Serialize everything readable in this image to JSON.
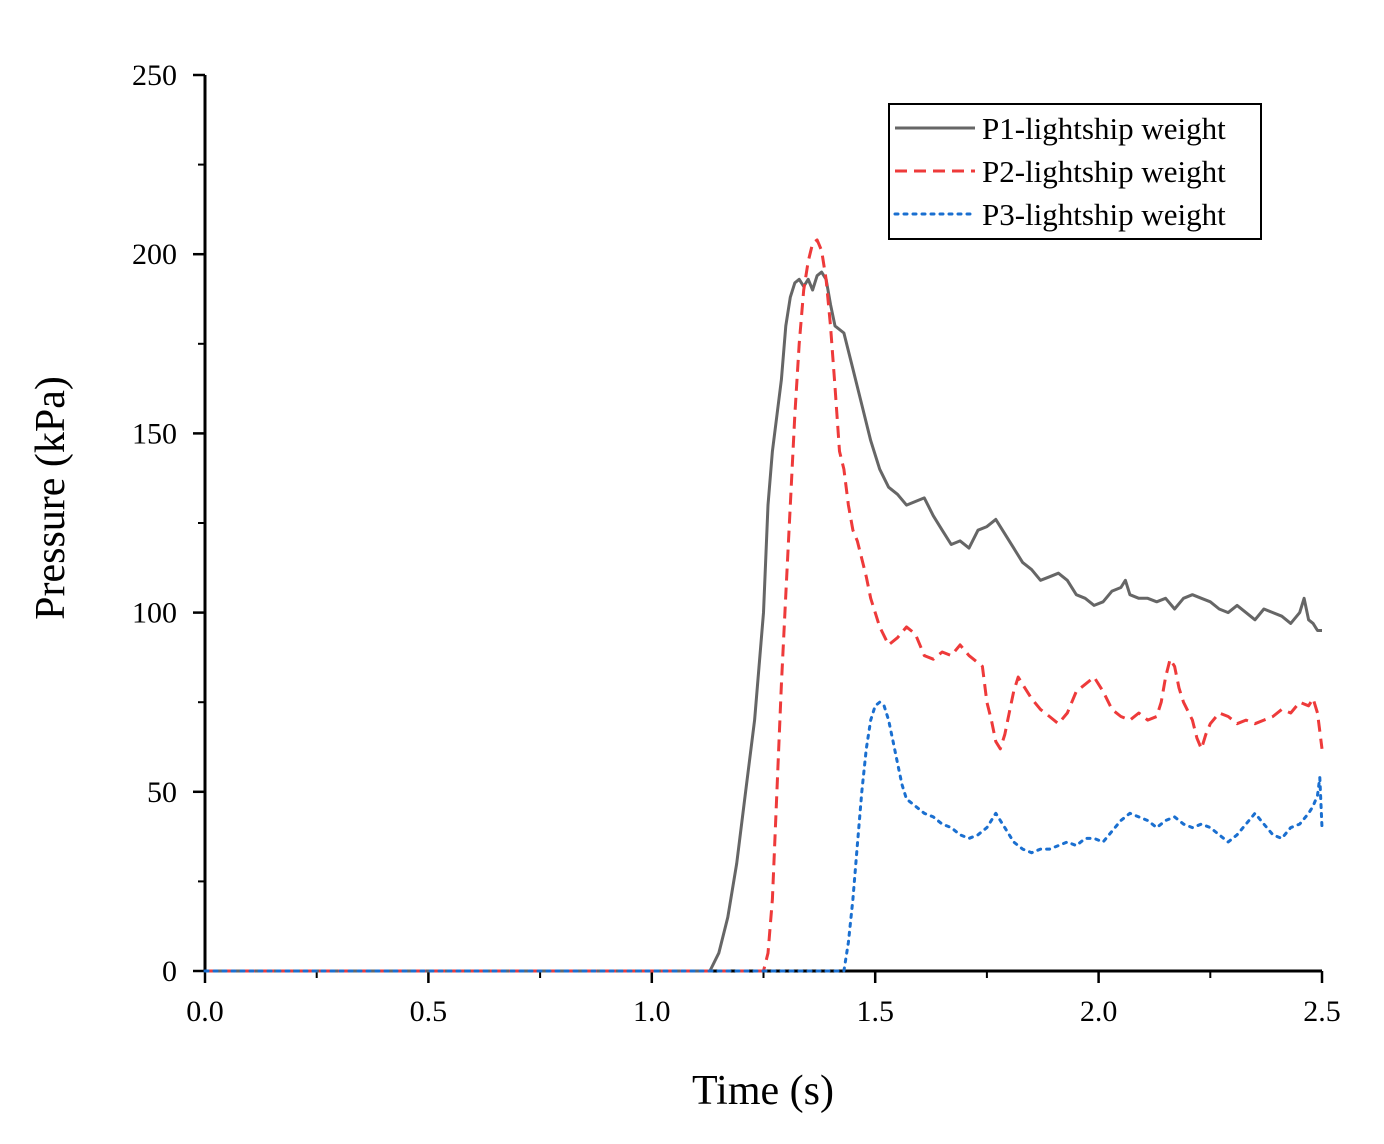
{
  "chart_data": {
    "type": "line",
    "title": "",
    "xlabel": "Time (s)",
    "ylabel": "Pressure (kPa)",
    "xlim": [
      0,
      2.5
    ],
    "ylim": [
      0,
      250
    ],
    "xticks": [
      "0.0",
      "0.5",
      "1.0",
      "1.5",
      "2.0",
      "2.5"
    ],
    "yticks": [
      "0",
      "50",
      "100",
      "150",
      "200",
      "250"
    ],
    "grid": false,
    "legend_position": "top-right",
    "series": [
      {
        "name": "P1-lightship weight",
        "color": "#666666",
        "style": "solid",
        "points": [
          [
            0,
            0
          ],
          [
            1.13,
            0
          ],
          [
            1.15,
            5
          ],
          [
            1.17,
            15
          ],
          [
            1.19,
            30
          ],
          [
            1.21,
            50
          ],
          [
            1.23,
            70
          ],
          [
            1.25,
            100
          ],
          [
            1.26,
            130
          ],
          [
            1.27,
            145
          ],
          [
            1.28,
            155
          ],
          [
            1.29,
            165
          ],
          [
            1.3,
            180
          ],
          [
            1.31,
            188
          ],
          [
            1.32,
            192
          ],
          [
            1.33,
            193
          ],
          [
            1.34,
            191
          ],
          [
            1.35,
            193
          ],
          [
            1.36,
            190
          ],
          [
            1.37,
            194
          ],
          [
            1.38,
            195
          ],
          [
            1.39,
            193
          ],
          [
            1.4,
            186
          ],
          [
            1.41,
            180
          ],
          [
            1.43,
            178
          ],
          [
            1.45,
            168
          ],
          [
            1.47,
            158
          ],
          [
            1.49,
            148
          ],
          [
            1.51,
            140
          ],
          [
            1.53,
            135
          ],
          [
            1.55,
            133
          ],
          [
            1.57,
            130
          ],
          [
            1.59,
            131
          ],
          [
            1.61,
            132
          ],
          [
            1.63,
            127
          ],
          [
            1.65,
            123
          ],
          [
            1.67,
            119
          ],
          [
            1.69,
            120
          ],
          [
            1.71,
            118
          ],
          [
            1.73,
            123
          ],
          [
            1.75,
            124
          ],
          [
            1.77,
            126
          ],
          [
            1.79,
            122
          ],
          [
            1.81,
            118
          ],
          [
            1.83,
            114
          ],
          [
            1.85,
            112
          ],
          [
            1.87,
            109
          ],
          [
            1.89,
            110
          ],
          [
            1.91,
            111
          ],
          [
            1.93,
            109
          ],
          [
            1.95,
            105
          ],
          [
            1.97,
            104
          ],
          [
            1.99,
            102
          ],
          [
            2.01,
            103
          ],
          [
            2.03,
            106
          ],
          [
            2.05,
            107
          ],
          [
            2.06,
            109
          ],
          [
            2.07,
            105
          ],
          [
            2.09,
            104
          ],
          [
            2.11,
            104
          ],
          [
            2.13,
            103
          ],
          [
            2.15,
            104
          ],
          [
            2.17,
            101
          ],
          [
            2.19,
            104
          ],
          [
            2.21,
            105
          ],
          [
            2.23,
            104
          ],
          [
            2.25,
            103
          ],
          [
            2.27,
            101
          ],
          [
            2.29,
            100
          ],
          [
            2.31,
            102
          ],
          [
            2.33,
            100
          ],
          [
            2.35,
            98
          ],
          [
            2.37,
            101
          ],
          [
            2.39,
            100
          ],
          [
            2.41,
            99
          ],
          [
            2.43,
            97
          ],
          [
            2.45,
            100
          ],
          [
            2.46,
            104
          ],
          [
            2.47,
            98
          ],
          [
            2.48,
            97
          ],
          [
            2.49,
            95
          ],
          [
            2.5,
            95
          ]
        ]
      },
      {
        "name": "P2-lightship weight",
        "color": "#ee3a3a",
        "style": "dashed",
        "points": [
          [
            0,
            0
          ],
          [
            1.25,
            0
          ],
          [
            1.26,
            5
          ],
          [
            1.27,
            20
          ],
          [
            1.28,
            50
          ],
          [
            1.29,
            80
          ],
          [
            1.3,
            105
          ],
          [
            1.31,
            130
          ],
          [
            1.32,
            155
          ],
          [
            1.33,
            175
          ],
          [
            1.34,
            190
          ],
          [
            1.35,
            198
          ],
          [
            1.36,
            203
          ],
          [
            1.37,
            204
          ],
          [
            1.38,
            201
          ],
          [
            1.39,
            193
          ],
          [
            1.4,
            180
          ],
          [
            1.41,
            163
          ],
          [
            1.42,
            145
          ],
          [
            1.43,
            140
          ],
          [
            1.44,
            130
          ],
          [
            1.45,
            123
          ],
          [
            1.46,
            120
          ],
          [
            1.47,
            115
          ],
          [
            1.48,
            110
          ],
          [
            1.49,
            104
          ],
          [
            1.5,
            100
          ],
          [
            1.51,
            96
          ],
          [
            1.53,
            91
          ],
          [
            1.55,
            93
          ],
          [
            1.57,
            96
          ],
          [
            1.59,
            94
          ],
          [
            1.61,
            88
          ],
          [
            1.63,
            87
          ],
          [
            1.65,
            89
          ],
          [
            1.67,
            88
          ],
          [
            1.69,
            91
          ],
          [
            1.71,
            88
          ],
          [
            1.73,
            86
          ],
          [
            1.74,
            85
          ],
          [
            1.75,
            75
          ],
          [
            1.76,
            70
          ],
          [
            1.77,
            64
          ],
          [
            1.78,
            62
          ],
          [
            1.79,
            66
          ],
          [
            1.8,
            72
          ],
          [
            1.81,
            78
          ],
          [
            1.82,
            82
          ],
          [
            1.83,
            80
          ],
          [
            1.85,
            76
          ],
          [
            1.87,
            73
          ],
          [
            1.89,
            71
          ],
          [
            1.91,
            69
          ],
          [
            1.93,
            72
          ],
          [
            1.95,
            78
          ],
          [
            1.97,
            80
          ],
          [
            1.99,
            82
          ],
          [
            2.01,
            78
          ],
          [
            2.03,
            73
          ],
          [
            2.05,
            71
          ],
          [
            2.07,
            70
          ],
          [
            2.09,
            72
          ],
          [
            2.11,
            70
          ],
          [
            2.13,
            71
          ],
          [
            2.14,
            75
          ],
          [
            2.15,
            82
          ],
          [
            2.16,
            87
          ],
          [
            2.17,
            85
          ],
          [
            2.18,
            79
          ],
          [
            2.19,
            75
          ],
          [
            2.21,
            70
          ],
          [
            2.22,
            65
          ],
          [
            2.23,
            62
          ],
          [
            2.24,
            66
          ],
          [
            2.25,
            69
          ],
          [
            2.27,
            72
          ],
          [
            2.29,
            71
          ],
          [
            2.31,
            69
          ],
          [
            2.33,
            70
          ],
          [
            2.35,
            69
          ],
          [
            2.37,
            70
          ],
          [
            2.39,
            71
          ],
          [
            2.41,
            73
          ],
          [
            2.43,
            72
          ],
          [
            2.45,
            75
          ],
          [
            2.47,
            74
          ],
          [
            2.48,
            76
          ],
          [
            2.49,
            72
          ],
          [
            2.5,
            62
          ]
        ]
      },
      {
        "name": "P3-lightship weight",
        "color": "#1a6fd0",
        "style": "dotted",
        "points": [
          [
            0,
            0
          ],
          [
            1.43,
            0
          ],
          [
            1.44,
            8
          ],
          [
            1.45,
            20
          ],
          [
            1.46,
            35
          ],
          [
            1.47,
            50
          ],
          [
            1.48,
            62
          ],
          [
            1.49,
            70
          ],
          [
            1.5,
            74
          ],
          [
            1.51,
            75
          ],
          [
            1.52,
            74
          ],
          [
            1.53,
            70
          ],
          [
            1.54,
            64
          ],
          [
            1.55,
            58
          ],
          [
            1.56,
            52
          ],
          [
            1.57,
            48
          ],
          [
            1.59,
            46
          ],
          [
            1.61,
            44
          ],
          [
            1.63,
            43
          ],
          [
            1.65,
            41
          ],
          [
            1.67,
            40
          ],
          [
            1.69,
            38
          ],
          [
            1.71,
            37
          ],
          [
            1.73,
            38
          ],
          [
            1.75,
            40
          ],
          [
            1.77,
            44
          ],
          [
            1.79,
            40
          ],
          [
            1.81,
            36
          ],
          [
            1.83,
            34
          ],
          [
            1.85,
            33
          ],
          [
            1.87,
            34
          ],
          [
            1.89,
            34
          ],
          [
            1.91,
            35
          ],
          [
            1.93,
            36
          ],
          [
            1.95,
            35
          ],
          [
            1.97,
            37
          ],
          [
            1.99,
            37
          ],
          [
            2.01,
            36
          ],
          [
            2.03,
            39
          ],
          [
            2.05,
            42
          ],
          [
            2.07,
            44
          ],
          [
            2.09,
            43
          ],
          [
            2.11,
            42
          ],
          [
            2.13,
            40
          ],
          [
            2.15,
            42
          ],
          [
            2.17,
            43
          ],
          [
            2.19,
            41
          ],
          [
            2.21,
            40
          ],
          [
            2.23,
            41
          ],
          [
            2.25,
            40
          ],
          [
            2.27,
            38
          ],
          [
            2.29,
            36
          ],
          [
            2.31,
            38
          ],
          [
            2.33,
            41
          ],
          [
            2.35,
            44
          ],
          [
            2.37,
            41
          ],
          [
            2.39,
            38
          ],
          [
            2.41,
            37
          ],
          [
            2.43,
            40
          ],
          [
            2.45,
            41
          ],
          [
            2.47,
            44
          ],
          [
            2.48,
            46
          ],
          [
            2.49,
            49
          ],
          [
            2.495,
            54
          ],
          [
            2.5,
            40
          ]
        ]
      }
    ]
  }
}
